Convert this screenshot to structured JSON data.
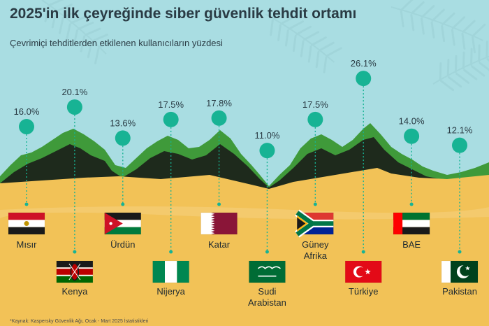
{
  "header": {
    "title": "2025'in ilk çeyreğinde siber güvenlik tehdit ortamı",
    "subtitle": "Çevrimiçi tehditlerden etkilenen kullanıcıların yüzdesi"
  },
  "footnote": "*Kaynak: Kaspersky Güvenlik Ağı, Ocak - Mart 2025 İstatistikleri",
  "colors": {
    "sky": "#a9dde2",
    "leaf": "#9ccfd4",
    "hill_green": "#3f9a3a",
    "hill_dark": "#1e2a1c",
    "sand": "#f2c257",
    "sand_light": "#f6d283",
    "marker": "#17b394",
    "dotted_line": "#17b394"
  },
  "chart_data": {
    "type": "scatter",
    "title": "2025'in ilk çeyreğinde siber güvenlik tehdit ortamı",
    "subtitle": "Çevrimiçi tehditlerden etkilenen kullanıcıların yüzdesi",
    "unit": "%",
    "categories": [
      "Mısır",
      "Kenya",
      "Ürdün",
      "Nijerya",
      "Katar",
      "Sudi Arabistan",
      "Güney Afrika",
      "Türkiye",
      "BAE",
      "Pakistan"
    ],
    "category_label_lines": [
      [
        "Mısır"
      ],
      [
        "Kenya"
      ],
      [
        "Ürdün"
      ],
      [
        "Nijerya"
      ],
      [
        "Katar"
      ],
      [
        "Sudi",
        "Arabistan"
      ],
      [
        "Güney",
        "Afrika"
      ],
      [
        "Türkiye"
      ],
      [
        "BAE"
      ],
      [
        "Pakistan"
      ]
    ],
    "value_labels": [
      "16.0%",
      "20.1%",
      "13.6%",
      "17.5%",
      "17.8%",
      "11.0%",
      "17.5%",
      "26.1%",
      "14.0%",
      "12.1%"
    ],
    "values": [
      16.0,
      20.1,
      13.6,
      17.5,
      17.8,
      11.0,
      17.5,
      26.1,
      14.0,
      12.1
    ],
    "flags": [
      "egypt",
      "kenya",
      "jordan",
      "nigeria",
      "qatar",
      "saudi_arabia",
      "south_africa",
      "turkey",
      "uae",
      "pakistan"
    ],
    "label_row": [
      "upper",
      "lower",
      "upper",
      "lower",
      "upper",
      "lower",
      "upper",
      "lower",
      "upper",
      "lower"
    ]
  }
}
